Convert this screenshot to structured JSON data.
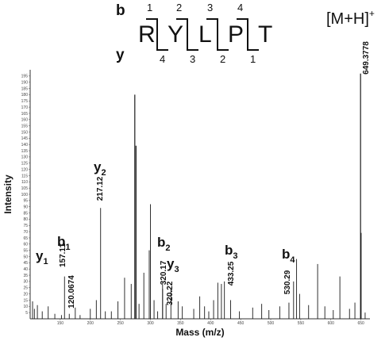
{
  "sequence": {
    "b_label": "b",
    "y_label": "y",
    "residues": [
      "R",
      "Y",
      "L",
      "P",
      "T"
    ],
    "b_numbers": [
      "1",
      "2",
      "3",
      "4"
    ],
    "y_numbers": [
      "4",
      "3",
      "2",
      "1"
    ],
    "precursor": "[M+H]",
    "precursor_charge": "+"
  },
  "chart_data": {
    "type": "bar",
    "xlabel": "Mass (m/z)",
    "ylabel": "Intensity",
    "xlim": [
      100,
      665
    ],
    "ylim": [
      0,
      200
    ],
    "x_ticks": [
      150,
      200,
      250,
      300,
      350,
      400,
      450,
      500,
      550,
      600,
      650
    ],
    "y_ticks": [
      5,
      10,
      15,
      20,
      25,
      30,
      35,
      40,
      45,
      50,
      55,
      60,
      65,
      70,
      75,
      80,
      85,
      90,
      95,
      100,
      105,
      110,
      115,
      120,
      125,
      130,
      135,
      140,
      145,
      150,
      155,
      160,
      165,
      170,
      175,
      180,
      185,
      190,
      195
    ],
    "peaks": [
      {
        "mz": 104,
        "intensity": 14
      },
      {
        "mz": 107,
        "intensity": 8
      },
      {
        "mz": 112,
        "intensity": 11
      },
      {
        "mz": 120.0674,
        "intensity": 6
      },
      {
        "mz": 130,
        "intensity": 10
      },
      {
        "mz": 141,
        "intensity": 4
      },
      {
        "mz": 152,
        "intensity": 3
      },
      {
        "mz": 157.11,
        "intensity": 34
      },
      {
        "mz": 165,
        "intensity": 4
      },
      {
        "mz": 175,
        "intensity": 9
      },
      {
        "mz": 183,
        "intensity": 3
      },
      {
        "mz": 200,
        "intensity": 8
      },
      {
        "mz": 210,
        "intensity": 15
      },
      {
        "mz": 217.12,
        "intensity": 89
      },
      {
        "mz": 225,
        "intensity": 6
      },
      {
        "mz": 235,
        "intensity": 6
      },
      {
        "mz": 246,
        "intensity": 14
      },
      {
        "mz": 257,
        "intensity": 33
      },
      {
        "mz": 268,
        "intensity": 28
      },
      {
        "mz": 274,
        "intensity": 180
      },
      {
        "mz": 276,
        "intensity": 139
      },
      {
        "mz": 281,
        "intensity": 12
      },
      {
        "mz": 289,
        "intensity": 37
      },
      {
        "mz": 298,
        "intensity": 55
      },
      {
        "mz": 300,
        "intensity": 92
      },
      {
        "mz": 306,
        "intensity": 15
      },
      {
        "mz": 312,
        "intensity": 6
      },
      {
        "mz": 320.17,
        "intensity": 29
      },
      {
        "mz": 320.22,
        "intensity": 24
      },
      {
        "mz": 326,
        "intensity": 12
      },
      {
        "mz": 334,
        "intensity": 24
      },
      {
        "mz": 346,
        "intensity": 14
      },
      {
        "mz": 353,
        "intensity": 10
      },
      {
        "mz": 372,
        "intensity": 8
      },
      {
        "mz": 382,
        "intensity": 18
      },
      {
        "mz": 390,
        "intensity": 10
      },
      {
        "mz": 397,
        "intensity": 6
      },
      {
        "mz": 405,
        "intensity": 15
      },
      {
        "mz": 412,
        "intensity": 29
      },
      {
        "mz": 418,
        "intensity": 28
      },
      {
        "mz": 423,
        "intensity": 30
      },
      {
        "mz": 433.25,
        "intensity": 15
      },
      {
        "mz": 448,
        "intensity": 6
      },
      {
        "mz": 470,
        "intensity": 9
      },
      {
        "mz": 485,
        "intensity": 12
      },
      {
        "mz": 497,
        "intensity": 7
      },
      {
        "mz": 515,
        "intensity": 10
      },
      {
        "mz": 530.29,
        "intensity": 13
      },
      {
        "mz": 538,
        "intensity": 30
      },
      {
        "mz": 543,
        "intensity": 48
      },
      {
        "mz": 548,
        "intensity": 20
      },
      {
        "mz": 563,
        "intensity": 11
      },
      {
        "mz": 578,
        "intensity": 44
      },
      {
        "mz": 590,
        "intensity": 10
      },
      {
        "mz": 604,
        "intensity": 7
      },
      {
        "mz": 615,
        "intensity": 34
      },
      {
        "mz": 631,
        "intensity": 8
      },
      {
        "mz": 640,
        "intensity": 13
      },
      {
        "mz": 649.3778,
        "intensity": 197
      },
      {
        "mz": 650.4,
        "intensity": 69
      },
      {
        "mz": 657,
        "intensity": 5
      }
    ],
    "mz_labels": [
      {
        "mz": 120.0674,
        "text": "120.0674"
      },
      {
        "mz": 157.11,
        "text": "157.11"
      },
      {
        "mz": 217.12,
        "text": "217.12"
      },
      {
        "mz": 320.17,
        "text": "320.17"
      },
      {
        "mz": 320.22,
        "text": "320.22"
      },
      {
        "mz": 433.25,
        "text": "433.25"
      },
      {
        "mz": 530.29,
        "text": "530.29"
      },
      {
        "mz": 649.3778,
        "text": "649.3778"
      }
    ],
    "ion_labels": [
      {
        "ion": "y",
        "sub": "1"
      },
      {
        "ion": "b",
        "sub": "1"
      },
      {
        "ion": "y",
        "sub": "2"
      },
      {
        "ion": "b",
        "sub": "2"
      },
      {
        "ion": "y",
        "sub": "3"
      },
      {
        "ion": "b",
        "sub": "3"
      },
      {
        "ion": "b",
        "sub": "4"
      }
    ]
  }
}
